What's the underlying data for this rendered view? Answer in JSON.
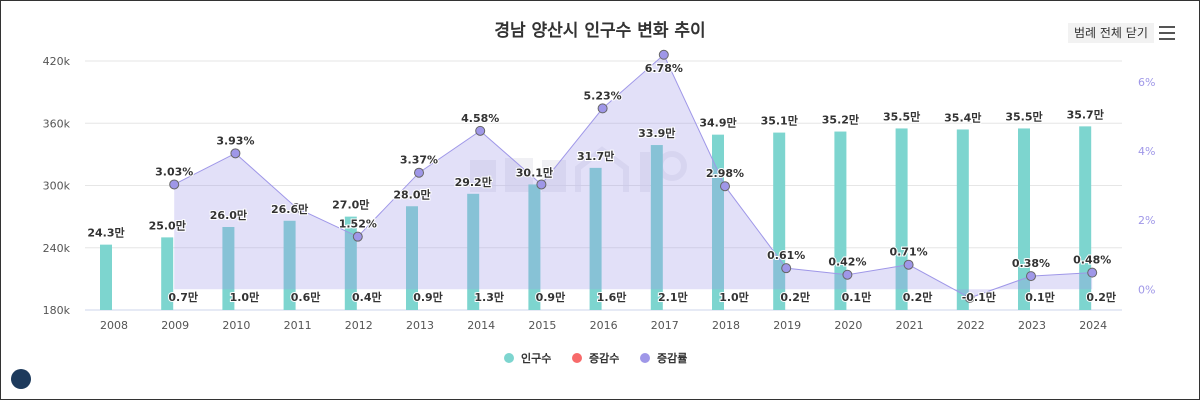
{
  "header": {
    "title": "경남 양산시 인구수 변화 추이",
    "legend_toggle_label": "범례 전체 닫기",
    "menu_icon": "hamburger-menu-icon"
  },
  "chart_data": {
    "type": "bar+line",
    "title": "경남 양산시 인구수 변화 추이",
    "categories": [
      "2008",
      "2009",
      "2010",
      "2011",
      "2012",
      "2013",
      "2014",
      "2015",
      "2016",
      "2017",
      "2018",
      "2019",
      "2020",
      "2021",
      "2022",
      "2023",
      "2024"
    ],
    "left_axis": {
      "range": [
        180,
        420
      ],
      "ticks": [
        "180k",
        "240k",
        "300k",
        "360k",
        "420k"
      ],
      "tick_values": [
        180,
        240,
        300,
        360,
        420
      ],
      "unit": "k"
    },
    "right_axis": {
      "range": [
        -0.6,
        6.6
      ],
      "ticks": [
        "0%",
        "2%",
        "4%",
        "6%"
      ],
      "tick_values": [
        0,
        2,
        4,
        6
      ]
    },
    "grid": true,
    "legend_placement": "bottom",
    "series": [
      {
        "name": "인구수",
        "type": "bar",
        "color": "#7dd5cf",
        "values_k": [
          243,
          250,
          260,
          266,
          270,
          280,
          292,
          301,
          317,
          339,
          349,
          351,
          352,
          355,
          354,
          355,
          357
        ],
        "labels": [
          "24.3만",
          "25.0만",
          "26.0만",
          "26.6만",
          "27.0만",
          "28.0만",
          "29.2만",
          "30.1만",
          "31.7만",
          "33.9만",
          "34.9만",
          "35.1만",
          "35.2만",
          "35.5만",
          "35.4만",
          "35.5만",
          "35.7만"
        ]
      },
      {
        "name": "증감수",
        "type": "bar",
        "color": "#f76a6a",
        "labels": [
          "",
          "0.7만",
          "1.0만",
          "0.6만",
          "0.4만",
          "0.9만",
          "1.3만",
          "0.9만",
          "1.6만",
          "2.1만",
          "1.0만",
          "0.2만",
          "0.1만",
          "0.2만",
          "-0.1만",
          "0.1만",
          "0.2만"
        ]
      },
      {
        "name": "증감률",
        "type": "area-line",
        "color": "#9f97e8",
        "values": [
          null,
          3.03,
          3.93,
          2.35,
          1.52,
          3.37,
          4.58,
          3.03,
          5.23,
          6.78,
          2.98,
          0.61,
          0.42,
          0.71,
          -0.25,
          0.38,
          0.48
        ],
        "labels": [
          "",
          "3.03%",
          "3.93%",
          "",
          "1.52%",
          "3.37%",
          "4.58%",
          "",
          "5.23%",
          "6.78%",
          "2.98%",
          "0.61%",
          "0.42%",
          "0.71%",
          "",
          "0.38%",
          "0.48%"
        ]
      }
    ]
  },
  "watermark": "부동산지인"
}
